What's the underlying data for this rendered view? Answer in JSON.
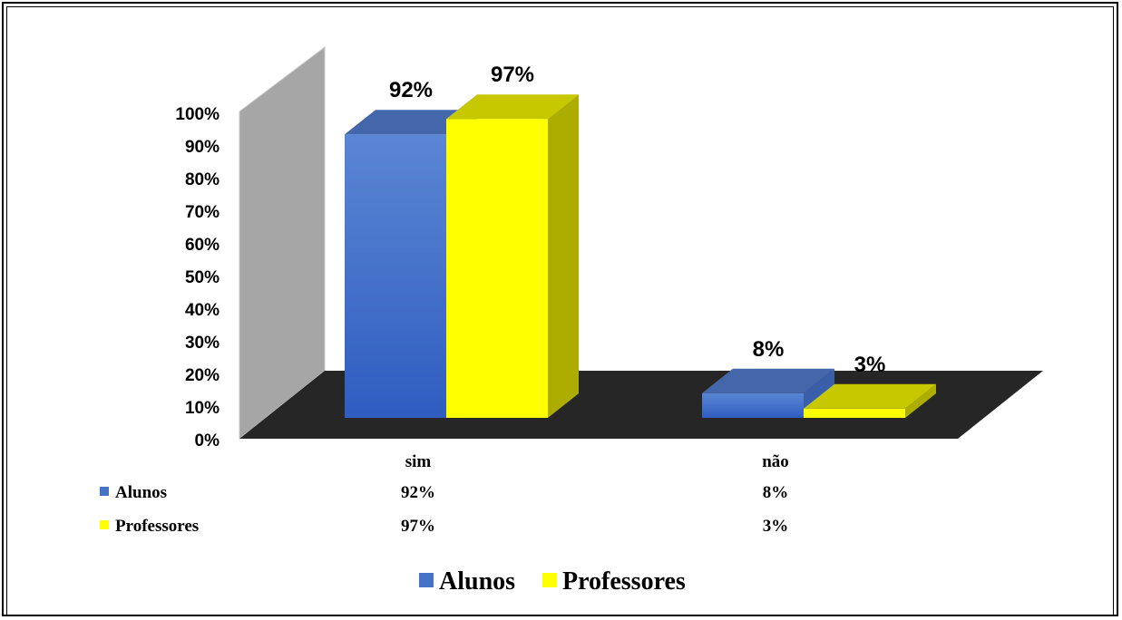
{
  "chart_data": {
    "type": "bar",
    "categories": [
      "sim",
      "não"
    ],
    "series": [
      {
        "name": "Alunos",
        "values": [
          92,
          8
        ],
        "labels": [
          "92%",
          "8%"
        ],
        "color": "#4472C4"
      },
      {
        "name": "Professores",
        "values": [
          97,
          3
        ],
        "labels": [
          "97%",
          "3%"
        ],
        "color": "#FFFF00"
      }
    ],
    "ylim": [
      0,
      100
    ],
    "yticks": [
      "0%",
      "10%",
      "20%",
      "30%",
      "40%",
      "50%",
      "60%",
      "70%",
      "80%",
      "90%",
      "100%"
    ],
    "data_table": true,
    "legend_position": "bottom",
    "style": "3d-clustered-column"
  }
}
